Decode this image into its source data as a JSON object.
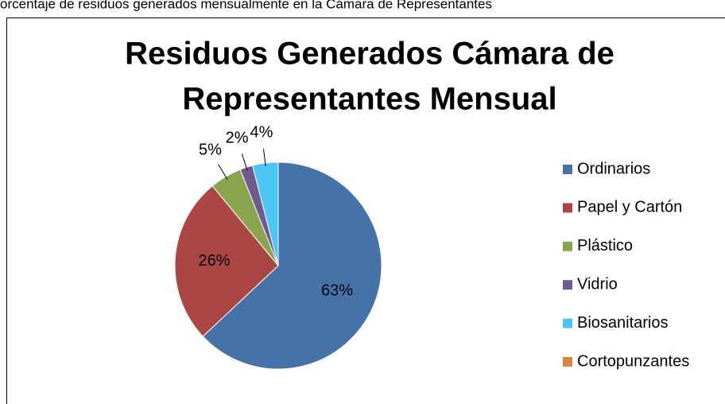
{
  "caption": "orcentaje de residuos generados mensualmente en la Cámara de Representantes",
  "chart_data": {
    "type": "pie",
    "title_lines": [
      "Residuos Generados Cámara de",
      "Representantes Mensual"
    ],
    "categories": [
      "Ordinarios",
      "Papel y Cartón",
      "Plástico",
      "Vidrio",
      "Biosanitarios",
      "Cortopunzantes"
    ],
    "values": [
      63,
      26,
      5,
      2,
      4,
      0
    ],
    "value_labels": [
      "63%",
      "26%",
      "5%",
      "2%",
      "4%",
      null
    ],
    "colors": [
      "#4572a7",
      "#aa4643",
      "#89a54e",
      "#71588f",
      "#4bc6f5",
      "#db843d"
    ],
    "legend": "right"
  }
}
